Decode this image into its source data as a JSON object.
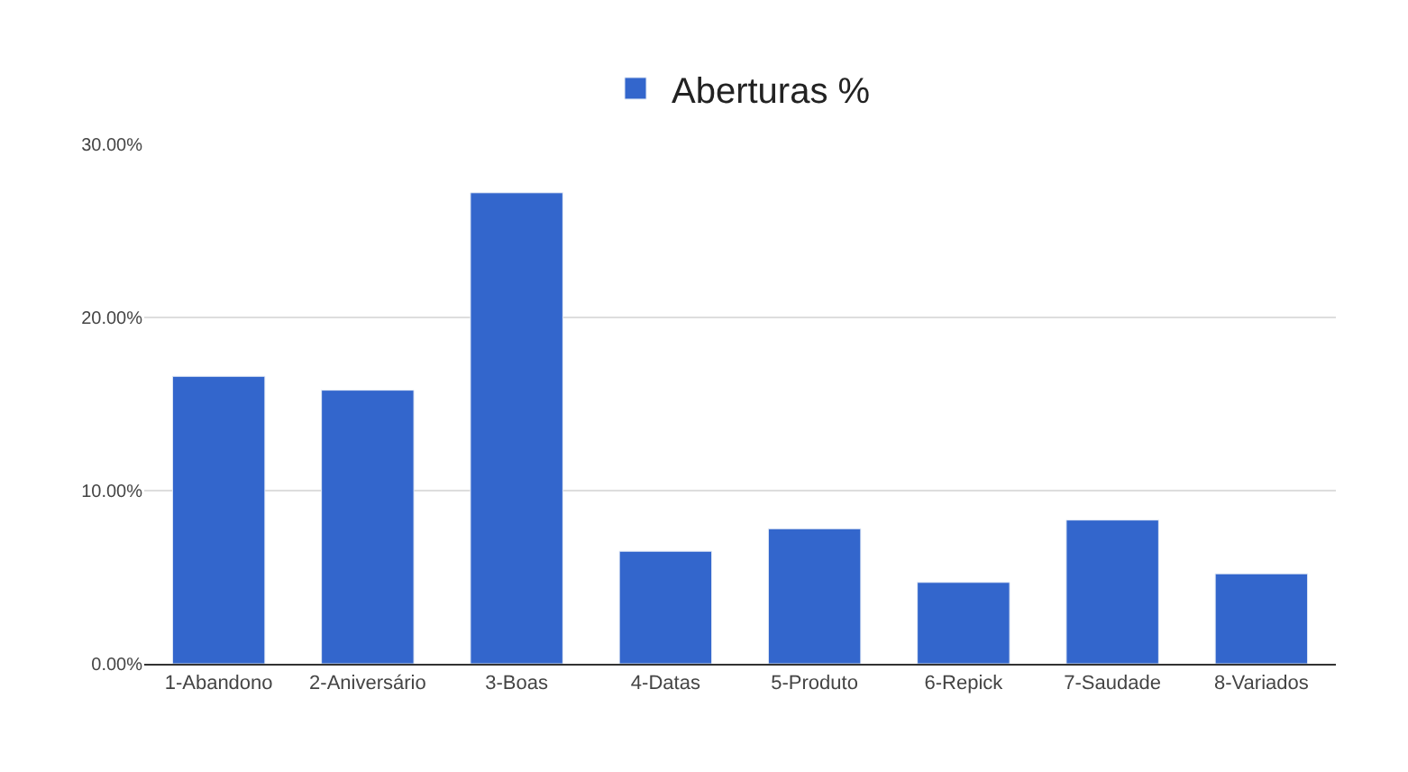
{
  "chart_data": {
    "type": "bar",
    "categories": [
      "1-Abandono",
      "2-Aniversário",
      "3-Boas",
      "4-Datas",
      "5-Produto",
      "6-Repick",
      "7-Saudade",
      "8-Variados"
    ],
    "series": [
      {
        "name": "Aberturas %",
        "color": "#3366cc",
        "values": [
          16.6,
          15.8,
          27.2,
          6.5,
          7.8,
          4.7,
          8.3,
          5.2
        ]
      }
    ],
    "ylim": [
      0,
      30
    ],
    "yticks": [
      {
        "value": 0,
        "label": "0.00%"
      },
      {
        "value": 10,
        "label": "10.00%"
      },
      {
        "value": 20,
        "label": "20.00%"
      },
      {
        "value": 30,
        "label": "30.00%"
      }
    ],
    "grid": "y",
    "legend": "top"
  }
}
